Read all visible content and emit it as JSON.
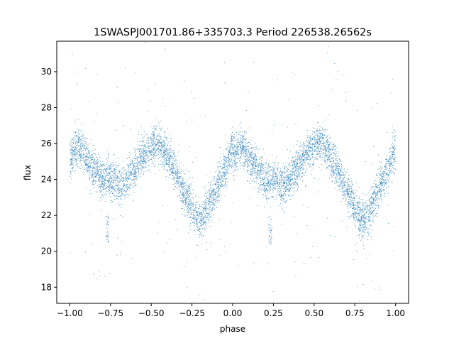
{
  "chart_data": {
    "type": "scatter",
    "title": "1SWASPJ001701.86+335703.3 Period 226538.26562s",
    "xlabel": "phase",
    "ylabel": "flux",
    "xlim": [
      -1.08,
      1.08
    ],
    "ylim": [
      17.1,
      31.7
    ],
    "xticks": [
      -1.0,
      -0.75,
      -0.5,
      -0.25,
      0.0,
      0.25,
      0.5,
      0.75,
      1.0
    ],
    "xtick_labels": [
      "−1.00",
      "−0.75",
      "−0.50",
      "−0.25",
      "0.00",
      "0.25",
      "0.50",
      "0.75",
      "1.00"
    ],
    "yticks": [
      18,
      20,
      22,
      24,
      26,
      28,
      30
    ],
    "ytick_labels": [
      "18",
      "20",
      "22",
      "24",
      "26",
      "28",
      "30"
    ],
    "grid": false,
    "legend": "none",
    "point_color": "#1f77b4",
    "curve_knots": {
      "phase": [
        0.0,
        0.05,
        0.2,
        0.27,
        0.3,
        0.35,
        0.42,
        0.52,
        0.55,
        0.6,
        0.7,
        0.8,
        0.85,
        0.95,
        1.0
      ],
      "flux": [
        25.1,
        25.9,
        23.9,
        24.1,
        23.6,
        24.0,
        25.0,
        26.0,
        26.1,
        25.3,
        23.3,
        21.6,
        22.5,
        24.5,
        25.8
      ]
    },
    "scatter_width": 0.55,
    "dip_clusters": [
      {
        "phase": 0.23,
        "flux_range": [
          20.4,
          22.0
        ]
      },
      {
        "phase": -0.77,
        "flux_range": [
          20.4,
          22.0
        ]
      }
    ]
  }
}
